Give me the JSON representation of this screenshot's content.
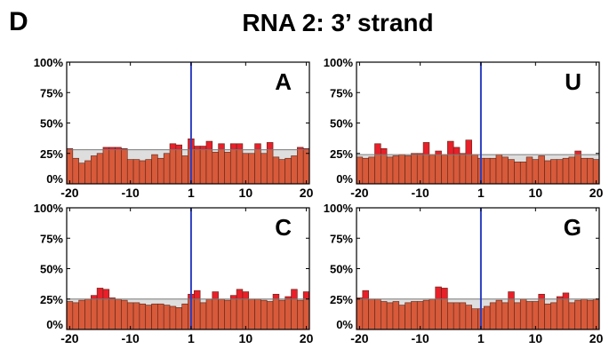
{
  "panel_tag": "D",
  "title": "RNA 2: 3’ strand",
  "colors": {
    "bar": "#d75a3b",
    "bar_stroke": "#5a2416",
    "excess": "#e8202a",
    "expected_fill": "#dedede",
    "expected_line": "#7a7a7a",
    "marker_line": "#2b3fc0",
    "frame": "#000000"
  },
  "chart_data": [
    {
      "type": "bar",
      "panel_label": "A",
      "x_ticks": [
        "-20",
        "-10",
        "1",
        "10",
        "20"
      ],
      "y_ticks": [
        "0%",
        "25%",
        "50%",
        "75%",
        "100%"
      ],
      "ylim": [
        0,
        100
      ],
      "marker_x": 1,
      "expected": 28,
      "x": [
        -20,
        -19,
        -18,
        -17,
        -16,
        -15,
        -14,
        -13,
        -12,
        -11,
        -10,
        -9,
        -8,
        -7,
        -6,
        -5,
        -4,
        -3,
        -2,
        -1,
        1,
        2,
        3,
        4,
        5,
        6,
        7,
        8,
        9,
        10,
        11,
        12,
        13,
        14,
        15,
        16,
        17,
        18,
        19,
        20
      ],
      "values": [
        29,
        21,
        17,
        19,
        23,
        25,
        30,
        30,
        30,
        29,
        20,
        20,
        19,
        20,
        24,
        21,
        25,
        33,
        32,
        23,
        37,
        31,
        31,
        35,
        26,
        33,
        26,
        33,
        33,
        25,
        25,
        33,
        25,
        34,
        22,
        20,
        21,
        23,
        30,
        29
      ]
    },
    {
      "type": "bar",
      "panel_label": "U",
      "x_ticks": [
        "-20",
        "-10",
        "1",
        "10",
        "20"
      ],
      "y_ticks": [
        "0%",
        "25%",
        "50%",
        "75%",
        "100%"
      ],
      "ylim": [
        0,
        100
      ],
      "marker_x": 1,
      "expected": 24,
      "x": [
        -20,
        -19,
        -18,
        -17,
        -16,
        -15,
        -14,
        -13,
        -12,
        -11,
        -10,
        -9,
        -8,
        -7,
        -6,
        -5,
        -4,
        -3,
        -2,
        -1,
        1,
        2,
        3,
        4,
        5,
        6,
        7,
        8,
        9,
        10,
        11,
        12,
        13,
        14,
        15,
        16,
        17,
        18,
        19,
        20
      ],
      "values": [
        22,
        21,
        22,
        33,
        29,
        22,
        23,
        24,
        23,
        25,
        25,
        34,
        24,
        27,
        24,
        35,
        30,
        25,
        36,
        24,
        21,
        21,
        21,
        24,
        22,
        20,
        18,
        18,
        22,
        20,
        23,
        19,
        20,
        20,
        21,
        22,
        27,
        21,
        21,
        20
      ]
    },
    {
      "type": "bar",
      "panel_label": "C",
      "x_ticks": [
        "-20",
        "-10",
        "1",
        "10",
        "20"
      ],
      "y_ticks": [
        "0%",
        "25%",
        "50%",
        "75%",
        "100%"
      ],
      "ylim": [
        0,
        100
      ],
      "marker_x": 1,
      "expected": 25,
      "x": [
        -20,
        -19,
        -18,
        -17,
        -16,
        -15,
        -14,
        -13,
        -12,
        -11,
        -10,
        -9,
        -8,
        -7,
        -6,
        -5,
        -4,
        -3,
        -2,
        -1,
        1,
        2,
        3,
        4,
        5,
        6,
        7,
        8,
        9,
        10,
        11,
        12,
        13,
        14,
        15,
        16,
        17,
        18,
        19,
        20
      ],
      "values": [
        23,
        22,
        24,
        25,
        28,
        34,
        33,
        26,
        25,
        24,
        22,
        22,
        21,
        20,
        21,
        21,
        20,
        19,
        18,
        21,
        29,
        32,
        22,
        25,
        31,
        25,
        24,
        28,
        33,
        31,
        25,
        25,
        24,
        23,
        29,
        24,
        27,
        33,
        24,
        31
      ]
    },
    {
      "type": "bar",
      "panel_label": "G",
      "x_ticks": [
        "-20",
        "-10",
        "1",
        "10",
        "20"
      ],
      "y_ticks": [
        "0%",
        "25%",
        "50%",
        "75%",
        "100%"
      ],
      "ylim": [
        0,
        100
      ],
      "marker_x": 1,
      "expected": 25,
      "x": [
        -20,
        -19,
        -18,
        -17,
        -16,
        -15,
        -14,
        -13,
        -12,
        -11,
        -10,
        -9,
        -8,
        -7,
        -6,
        -5,
        -4,
        -3,
        -2,
        -1,
        1,
        2,
        3,
        4,
        5,
        6,
        7,
        8,
        9,
        10,
        11,
        12,
        13,
        14,
        15,
        16,
        17,
        18,
        19,
        20
      ],
      "values": [
        26,
        32,
        25,
        25,
        23,
        22,
        23,
        20,
        22,
        23,
        23,
        24,
        25,
        35,
        34,
        22,
        22,
        22,
        20,
        17,
        17,
        19,
        22,
        24,
        22,
        31,
        22,
        25,
        23,
        23,
        29,
        21,
        22,
        27,
        30,
        22,
        24,
        25,
        24,
        25
      ]
    }
  ]
}
